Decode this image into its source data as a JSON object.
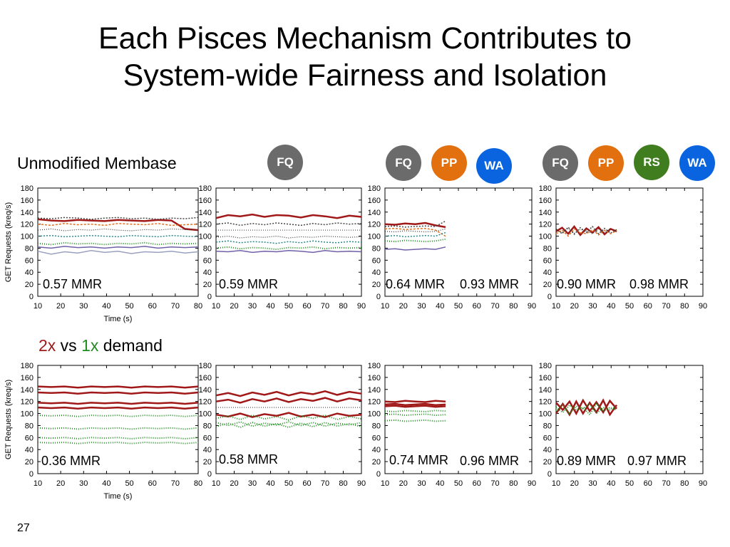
{
  "title_line1": "Each Pisces Mechanism Contributes to",
  "title_line2": "System-wide Fairness and Isolation",
  "row1_label": "Unmodified Membase",
  "row2_label": {
    "part1": "2x",
    "part2": " vs ",
    "part3": "1x",
    "part4": " demand"
  },
  "colors": {
    "FQ": "#6b6b6b",
    "PP": "#e2700f",
    "RS": "#3f7d1e",
    "WA": "#0a64e0",
    "red": "#a01818",
    "green": "#1e8c1e"
  },
  "badges": [
    {
      "label": "FQ",
      "color": "#6b6b6b"
    },
    {
      "label": "FQ",
      "color": "#6b6b6b"
    },
    {
      "label": "PP",
      "color": "#e2700f"
    },
    {
      "label": "WA",
      "color": "#0a64e0"
    },
    {
      "label": "FQ",
      "color": "#6b6b6b"
    },
    {
      "label": "PP",
      "color": "#e2700f"
    },
    {
      "label": "RS",
      "color": "#3f7d1e"
    },
    {
      "label": "WA",
      "color": "#0a64e0"
    }
  ],
  "mmr": [
    "0.57 MMR",
    "0.59 MMR",
    "0.64 MMR",
    "0.93 MMR",
    "0.90 MMR",
    "0.98 MMR",
    "0.36 MMR",
    "0.58 MMR",
    "0.74 MMR",
    "0.96 MMR",
    "0.89 MMR",
    "0.97 MMR"
  ],
  "page_number": "27",
  "chart_data": [
    {
      "type": "line",
      "ylabel": "GET Requests (kreq/s)",
      "xlabel": "Time (s)",
      "xlim": [
        10,
        80
      ],
      "ylim": [
        0,
        180
      ],
      "xticks": [
        10,
        20,
        30,
        40,
        50,
        60,
        70,
        80
      ],
      "yticks": [
        0,
        20,
        40,
        60,
        80,
        100,
        120,
        140,
        160,
        180
      ],
      "series": [
        {
          "values": [
            128,
            126,
            125,
            127,
            126,
            125,
            127,
            126,
            125,
            127,
            126,
            112,
            110
          ]
        },
        {
          "values": [
            130,
            129,
            131,
            130,
            128,
            130,
            131,
            129,
            130,
            128,
            130,
            129,
            131
          ]
        },
        {
          "values": [
            120,
            118,
            121,
            119,
            120,
            118,
            121,
            120,
            119,
            121,
            118,
            119,
            120
          ]
        },
        {
          "values": [
            110,
            112,
            109,
            111,
            110,
            112,
            110,
            109,
            111,
            110,
            112,
            111,
            110
          ]
        },
        {
          "values": [
            100,
            101,
            99,
            100,
            101,
            100,
            99,
            101,
            100,
            99,
            101,
            100,
            99
          ]
        },
        {
          "values": [
            88,
            86,
            89,
            87,
            88,
            86,
            88,
            87,
            89,
            86,
            88,
            87,
            88
          ]
        },
        {
          "values": [
            82,
            80,
            83,
            81,
            82,
            80,
            82,
            81,
            83,
            80,
            82,
            81,
            82
          ]
        },
        {
          "values": [
            75,
            70,
            74,
            72,
            76,
            73,
            75,
            71,
            74,
            73,
            75,
            72,
            74
          ]
        }
      ]
    },
    {
      "type": "line",
      "xlim": [
        10,
        90
      ],
      "ylim": [
        0,
        180
      ],
      "xticks": [
        10,
        20,
        30,
        40,
        50,
        60,
        70,
        80,
        90
      ],
      "yticks": [
        0,
        20,
        40,
        60,
        80,
        100,
        120,
        140,
        160,
        180
      ],
      "series": [
        {
          "values": [
            130,
            135,
            133,
            136,
            132,
            135,
            134,
            131,
            135,
            133,
            130,
            134,
            132
          ]
        },
        {
          "values": [
            120,
            122,
            118,
            121,
            119,
            122,
            120,
            118,
            121,
            119,
            122,
            120,
            121
          ]
        },
        {
          "values": [
            110,
            110,
            110,
            110,
            110,
            110,
            110,
            110,
            110,
            110,
            110,
            110,
            110
          ]
        },
        {
          "values": [
            98,
            100,
            97,
            99,
            98,
            100,
            97,
            99,
            98,
            100,
            99,
            98,
            99
          ]
        },
        {
          "values": [
            90,
            92,
            89,
            91,
            90,
            88,
            91,
            89,
            92,
            90,
            89,
            91,
            90
          ]
        },
        {
          "values": [
            80,
            82,
            79,
            81,
            80,
            78,
            81,
            80,
            82,
            79,
            81,
            80,
            81
          ]
        },
        {
          "values": [
            75,
            74,
            76,
            73,
            75,
            74,
            76,
            75,
            73,
            76,
            74,
            75,
            74
          ]
        }
      ]
    },
    {
      "type": "line",
      "xlim": [
        10,
        90
      ],
      "ylim": [
        0,
        180
      ],
      "xticks": [
        10,
        20,
        30,
        40,
        50,
        60,
        70,
        80,
        90
      ],
      "yticks": [
        0,
        20,
        40,
        60,
        80,
        100,
        120,
        140,
        160,
        180
      ],
      "series": [
        {
          "values": [
            120,
            119,
            121,
            120,
            122,
            118,
            115
          ]
        },
        {
          "values": [
            116,
            117,
            115,
            116,
            117,
            116,
            125
          ]
        },
        {
          "values": [
            112,
            113,
            111,
            112,
            113,
            110,
            100
          ]
        },
        {
          "values": [
            108,
            107,
            109,
            108,
            107,
            108,
            112
          ]
        },
        {
          "values": [
            100,
            101,
            99,
            100,
            101,
            100,
            106
          ]
        },
        {
          "values": [
            92,
            91,
            93,
            92,
            91,
            92,
            95
          ]
        },
        {
          "values": [
            78,
            79,
            77,
            78,
            79,
            78,
            82
          ]
        }
      ]
    },
    {
      "type": "line",
      "xlim": [
        10,
        90
      ],
      "ylim": [
        0,
        180
      ],
      "xticks": [
        10,
        20,
        30,
        40,
        50,
        60,
        70,
        80,
        90
      ],
      "yticks": [
        0,
        20,
        40,
        60,
        80,
        100,
        120,
        140,
        160,
        180
      ],
      "series": [
        {
          "values": [
            108,
            114,
            104,
            116,
            102,
            113,
            106,
            115,
            103,
            112,
            108
          ]
        },
        {
          "values": [
            112,
            104,
            115,
            103,
            114,
            106,
            116,
            104,
            113,
            105,
            111
          ]
        },
        {
          "values": [
            104,
            110,
            100,
            112,
            106,
            104,
            111,
            102,
            110,
            104,
            109
          ]
        },
        {
          "values": [
            110,
            106,
            113,
            105,
            111,
            109,
            104,
            112,
            106,
            113,
            107
          ]
        }
      ]
    },
    {
      "type": "line",
      "ylabel": "GET Requests (kreq/s)",
      "xlabel": "Time (s)",
      "xlim": [
        10,
        80
      ],
      "ylim": [
        0,
        180
      ],
      "xticks": [
        10,
        20,
        30,
        40,
        50,
        60,
        70,
        80
      ],
      "yticks": [
        0,
        20,
        40,
        60,
        80,
        100,
        120,
        140,
        160,
        180
      ],
      "series": [
        {
          "values": [
            145,
            144,
            145,
            143,
            145,
            144,
            145,
            143,
            145,
            144,
            145,
            143,
            145
          ]
        },
        {
          "values": [
            135,
            134,
            135,
            133,
            135,
            134,
            135,
            133,
            135,
            134,
            135,
            133,
            135
          ]
        },
        {
          "values": [
            118,
            117,
            118,
            116,
            118,
            117,
            118,
            116,
            118,
            117,
            118,
            116,
            118
          ]
        },
        {
          "values": [
            110,
            109,
            110,
            108,
            110,
            109,
            110,
            108,
            110,
            109,
            110,
            108,
            110
          ]
        },
        {
          "values": [
            97,
            96,
            97,
            95,
            97,
            96,
            97,
            95,
            97,
            96,
            97,
            95,
            97
          ]
        },
        {
          "values": [
            76,
            75,
            76,
            74,
            76,
            75,
            76,
            74,
            76,
            75,
            76,
            74,
            76
          ]
        },
        {
          "values": [
            60,
            59,
            60,
            58,
            60,
            59,
            60,
            58,
            60,
            59,
            60,
            58,
            60
          ]
        },
        {
          "values": [
            52,
            51,
            52,
            50,
            52,
            51,
            52,
            50,
            52,
            51,
            52,
            50,
            52
          ]
        }
      ]
    },
    {
      "type": "line",
      "xlim": [
        10,
        90
      ],
      "ylim": [
        0,
        180
      ],
      "xticks": [
        10,
        20,
        30,
        40,
        50,
        60,
        70,
        80,
        90
      ],
      "yticks": [
        0,
        20,
        40,
        60,
        80,
        100,
        120,
        140,
        160,
        180
      ],
      "series": [
        {
          "values": [
            130,
            134,
            129,
            135,
            131,
            136,
            130,
            135,
            132,
            137,
            131,
            136,
            133
          ]
        },
        {
          "values": [
            120,
            123,
            118,
            124,
            120,
            125,
            119,
            124,
            121,
            126,
            120,
            125,
            122
          ]
        },
        {
          "values": [
            110,
            110,
            110,
            110,
            110,
            110,
            110,
            110,
            110,
            110,
            110,
            110,
            110
          ]
        },
        {
          "values": [
            98,
            95,
            100,
            94,
            99,
            96,
            101,
            95,
            98,
            94,
            100,
            96,
            98
          ]
        },
        {
          "values": [
            92,
            96,
            90,
            97,
            91,
            95,
            89,
            96,
            92,
            97,
            90,
            95,
            91
          ]
        },
        {
          "values": [
            85,
            80,
            86,
            79,
            84,
            81,
            86,
            80,
            85,
            79,
            84,
            81,
            85
          ]
        },
        {
          "values": [
            78,
            84,
            77,
            85,
            79,
            83,
            77,
            84,
            78,
            85,
            79,
            83,
            78
          ]
        }
      ]
    },
    {
      "type": "line",
      "xlim": [
        10,
        90
      ],
      "ylim": [
        0,
        180
      ],
      "xticks": [
        10,
        20,
        30,
        40,
        50,
        60,
        70,
        80,
        90
      ],
      "yticks": [
        0,
        20,
        40,
        60,
        80,
        100,
        120,
        140,
        160,
        180
      ],
      "series": [
        {
          "values": [
            120,
            119,
            121,
            120,
            119,
            121,
            120
          ]
        },
        {
          "values": [
            115,
            116,
            114,
            115,
            116,
            114,
            115
          ]
        },
        {
          "values": [
            112,
            113,
            111,
            112,
            113,
            111,
            112
          ]
        },
        {
          "values": [
            104,
            103,
            105,
            104,
            103,
            105,
            104
          ]
        },
        {
          "values": [
            98,
            99,
            97,
            98,
            99,
            97,
            98
          ]
        },
        {
          "values": [
            88,
            89,
            87,
            88,
            89,
            87,
            88
          ]
        }
      ]
    },
    {
      "type": "line",
      "xlim": [
        10,
        90
      ],
      "ylim": [
        0,
        180
      ],
      "xticks": [
        10,
        20,
        30,
        40,
        50,
        60,
        70,
        80,
        90
      ],
      "yticks": [
        0,
        20,
        40,
        60,
        80,
        100,
        120,
        140,
        160,
        180
      ],
      "series": [
        {
          "values": [
            118,
            106,
            120,
            100,
            122,
            104,
            119,
            102,
            121,
            108
          ]
        },
        {
          "values": [
            100,
            116,
            98,
            120,
            100,
            118,
            102,
            122,
            98,
            114
          ]
        },
        {
          "values": [
            110,
            102,
            114,
            106,
            110,
            98,
            116,
            104,
            110,
            106
          ]
        },
        {
          "values": [
            104,
            114,
            100,
            112,
            108,
            116,
            100,
            110,
            106,
            112
          ]
        }
      ]
    }
  ]
}
